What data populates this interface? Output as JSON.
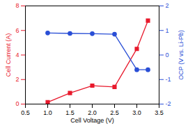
{
  "chart_data": {
    "type": "line",
    "xlabel": "Cell Voltage (V)",
    "ylabel": "Cell Current (A)",
    "y2label": "OCP (V vs. Li-Pb)",
    "x": [
      1.0,
      1.5,
      2.0,
      2.5,
      3.0,
      3.25
    ],
    "xlim": [
      0.5,
      3.5
    ],
    "xticks": [
      {
        "value": 0.5,
        "label": "0.5"
      },
      {
        "value": 1,
        "label": "1.0"
      },
      {
        "value": 1.5,
        "label": "1.5"
      },
      {
        "value": 2,
        "label": "2.0"
      },
      {
        "value": 2.5,
        "label": "2.5"
      },
      {
        "value": 3,
        "label": "3.0"
      },
      {
        "value": 3.5,
        "label": "3.5"
      }
    ],
    "ylim": [
      0,
      8
    ],
    "yticks": [
      0,
      2,
      4,
      6,
      8
    ],
    "y2lim": [
      -2,
      2
    ],
    "y2ticks": [
      -2,
      -1,
      0,
      1,
      2
    ],
    "grid": false,
    "series": [
      {
        "name": "Cell Current",
        "color": "#e8192c",
        "marker": "square",
        "line_style": "solid",
        "values": [
          0.15,
          0.9,
          1.5,
          1.4,
          4.5,
          6.8
        ]
      },
      {
        "name": "OCP",
        "color": "#2a4fd6",
        "marker": "circle",
        "line_style": "solid",
        "axis": "y2",
        "values": [
          0.9,
          0.88,
          0.87,
          0.85,
          -0.6,
          -0.6
        ]
      }
    ]
  }
}
